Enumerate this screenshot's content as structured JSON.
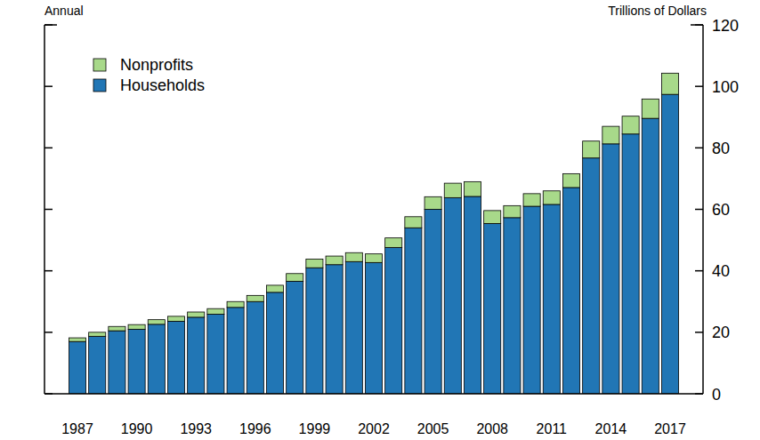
{
  "chart_data": {
    "type": "bar",
    "stacked": true,
    "subtitle": "Annual",
    "y_label": "Trillions of Dollars",
    "legend": "top-left",
    "categories": [
      "1987",
      null,
      null,
      "1990",
      null,
      null,
      "1993",
      null,
      null,
      "1996",
      null,
      null,
      "1999",
      null,
      null,
      "2002",
      null,
      null,
      "2005",
      null,
      null,
      "2008",
      null,
      null,
      "2011",
      null,
      null,
      "2014",
      null,
      null,
      "2017"
    ],
    "series": [
      {
        "name": "Households",
        "color": "#2176b5",
        "values": [
          17.0,
          18.7,
          20.5,
          21.0,
          22.6,
          23.6,
          24.9,
          25.9,
          28.1,
          30.0,
          33.0,
          36.6,
          41.0,
          42.0,
          43.0,
          42.7,
          47.6,
          54.0,
          60.0,
          63.8,
          64.2,
          55.4,
          57.3,
          61.0,
          61.6,
          67.1,
          76.7,
          81.3,
          84.5,
          89.6,
          97.4
        ]
      },
      {
        "name": "Nonprofits",
        "color": "#a8d98a",
        "values": [
          1.2,
          1.3,
          1.4,
          1.5,
          1.5,
          1.6,
          1.7,
          1.8,
          1.9,
          2.0,
          2.3,
          2.5,
          2.8,
          2.8,
          2.9,
          2.8,
          3.1,
          3.6,
          4.1,
          4.7,
          4.8,
          4.2,
          3.9,
          4.1,
          4.4,
          4.5,
          5.5,
          5.7,
          5.8,
          6.3,
          6.9
        ]
      }
    ],
    "ylim": [
      0,
      120
    ],
    "yticks": [
      0,
      20,
      40,
      60,
      80,
      100,
      120
    ],
    "grid": false
  }
}
